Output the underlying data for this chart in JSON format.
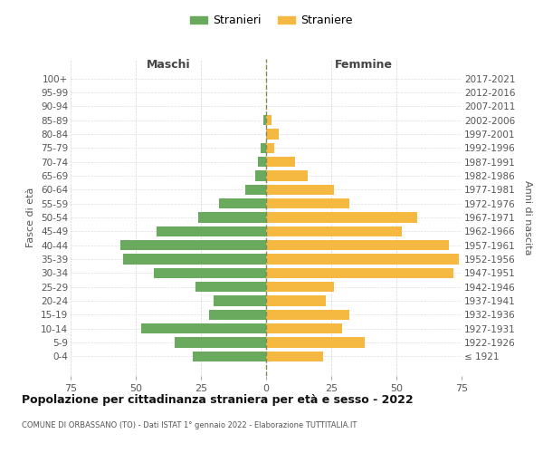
{
  "age_groups": [
    "100+",
    "95-99",
    "90-94",
    "85-89",
    "80-84",
    "75-79",
    "70-74",
    "65-69",
    "60-64",
    "55-59",
    "50-54",
    "45-49",
    "40-44",
    "35-39",
    "30-34",
    "25-29",
    "20-24",
    "15-19",
    "10-14",
    "5-9",
    "0-4"
  ],
  "birth_years": [
    "≤ 1921",
    "1922-1926",
    "1927-1931",
    "1932-1936",
    "1937-1941",
    "1942-1946",
    "1947-1951",
    "1952-1956",
    "1957-1961",
    "1962-1966",
    "1967-1971",
    "1972-1976",
    "1977-1981",
    "1982-1986",
    "1987-1991",
    "1992-1996",
    "1997-2001",
    "2002-2006",
    "2007-2011",
    "2012-2016",
    "2017-2021"
  ],
  "males": [
    0,
    0,
    0,
    1,
    0,
    2,
    3,
    4,
    8,
    18,
    26,
    42,
    56,
    55,
    43,
    27,
    20,
    22,
    48,
    35,
    28
  ],
  "females": [
    0,
    0,
    0,
    2,
    5,
    3,
    11,
    16,
    26,
    32,
    58,
    52,
    70,
    74,
    72,
    26,
    23,
    32,
    29,
    38,
    22
  ],
  "male_color": "#6aaa5e",
  "female_color": "#f5b942",
  "grid_color": "#cccccc",
  "center_line_color": "#888855",
  "background_color": "#ffffff",
  "title": "Popolazione per cittadinanza straniera per età e sesso - 2022",
  "subtitle": "COMUNE DI ORBASSANO (TO) - Dati ISTAT 1° gennaio 2022 - Elaborazione TUTTITALIA.IT",
  "xlabel_left": "Maschi",
  "xlabel_right": "Femmine",
  "ylabel_left": "Fasce di età",
  "ylabel_right": "Anni di nascita",
  "legend_males": "Stranieri",
  "legend_females": "Straniere",
  "xlim": 75
}
